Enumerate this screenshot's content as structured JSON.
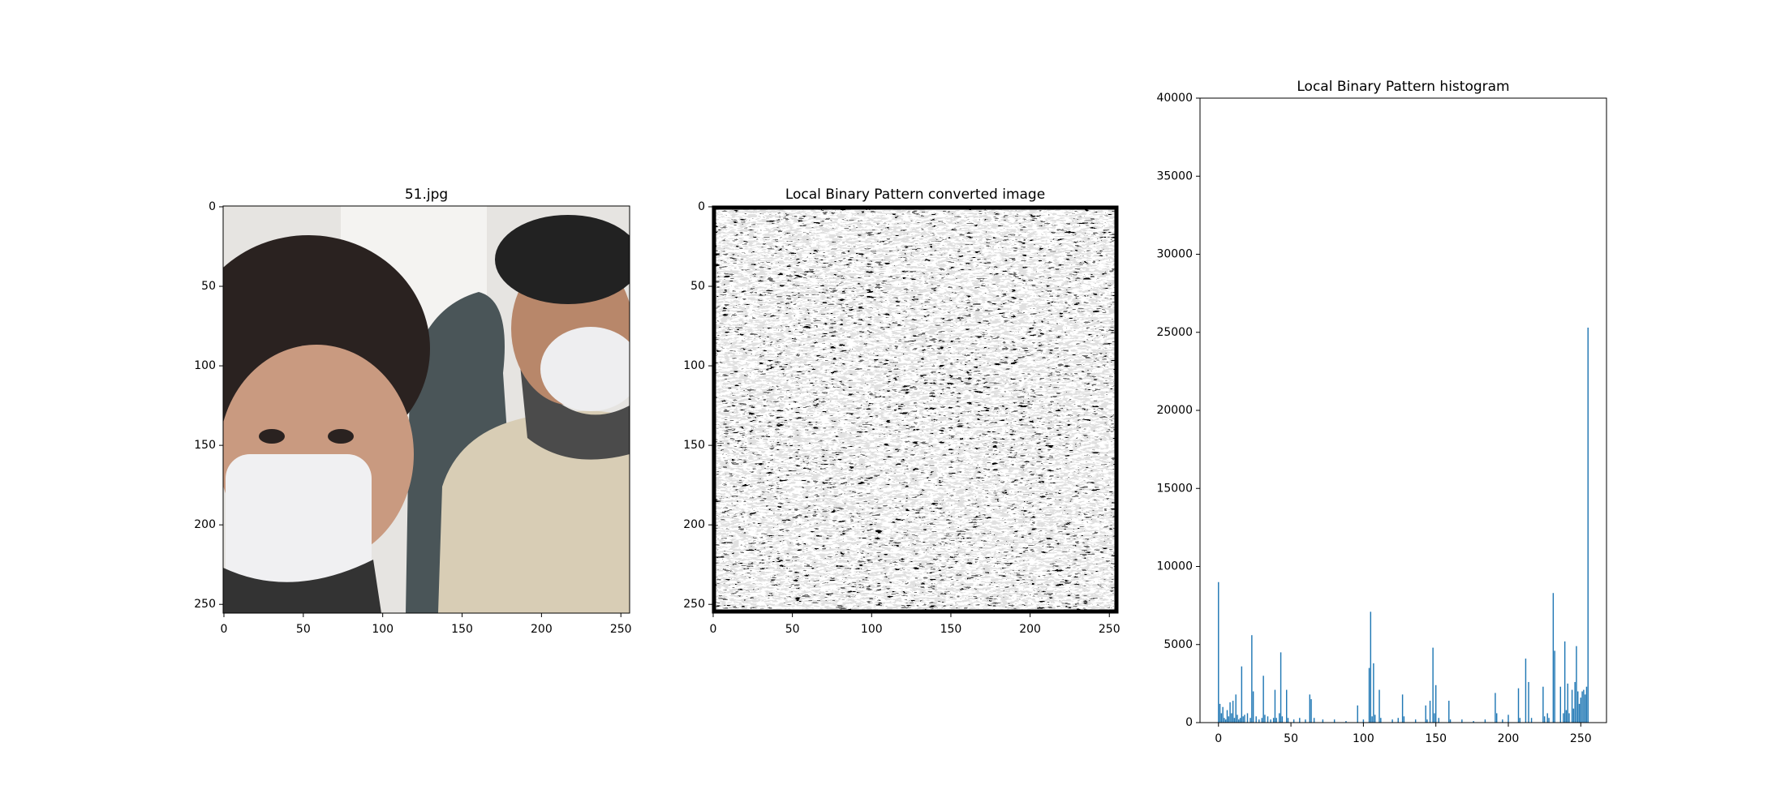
{
  "chart_data": [
    {
      "type": "image",
      "title": "51.jpg",
      "xlim": [
        -0.5,
        255.5
      ],
      "ylim": [
        255.5,
        -0.5
      ],
      "xticks": [
        0,
        50,
        100,
        150,
        200,
        250
      ],
      "yticks": [
        0,
        50,
        100,
        150,
        200,
        250
      ]
    },
    {
      "type": "image",
      "title": "Local Binary Pattern converted image",
      "xlim": [
        -0.5,
        255.5
      ],
      "ylim": [
        255.5,
        -0.5
      ],
      "xticks": [
        0,
        50,
        100,
        150,
        200,
        250
      ],
      "yticks": [
        0,
        50,
        100,
        150,
        200,
        250
      ]
    },
    {
      "type": "bar",
      "title": "Local Binary Pattern histogram",
      "color": "#1f77b4",
      "x": [
        0,
        1,
        2,
        3,
        4,
        5,
        6,
        7,
        8,
        9,
        10,
        11,
        12,
        13,
        14,
        15,
        16,
        17,
        18,
        20,
        22,
        23,
        24,
        26,
        28,
        30,
        31,
        32,
        34,
        36,
        38,
        39,
        40,
        42,
        43,
        44,
        47,
        48,
        52,
        56,
        60,
        63,
        64,
        66,
        72,
        80,
        88,
        96,
        100,
        104,
        105,
        106,
        107,
        108,
        111,
        112,
        120,
        124,
        127,
        128,
        136,
        143,
        144,
        146,
        148,
        149,
        150,
        152,
        159,
        160,
        168,
        176,
        184,
        191,
        192,
        196,
        200,
        207,
        208,
        212,
        214,
        216,
        224,
        225,
        227,
        228,
        231,
        232,
        236,
        238,
        239,
        240,
        241,
        242,
        244,
        245,
        246,
        247,
        248,
        249,
        250,
        251,
        252,
        253,
        254,
        255
      ],
      "values": [
        9000,
        1200,
        600,
        1000,
        300,
        200,
        800,
        400,
        1300,
        600,
        1400,
        300,
        1800,
        500,
        200,
        300,
        3600,
        400,
        500,
        600,
        300,
        5600,
        2000,
        400,
        200,
        300,
        3000,
        500,
        400,
        200,
        300,
        2100,
        300,
        600,
        4500,
        400,
        2100,
        300,
        200,
        300,
        200,
        1800,
        1500,
        300,
        200,
        200,
        100,
        1100,
        200,
        3500,
        7100,
        400,
        3800,
        500,
        2100,
        300,
        200,
        300,
        1800,
        400,
        200,
        1100,
        200,
        1400,
        4800,
        600,
        2400,
        300,
        1400,
        200,
        200,
        100,
        200,
        1900,
        600,
        200,
        500,
        2200,
        300,
        4100,
        2600,
        300,
        2300,
        400,
        600,
        300,
        8300,
        4600,
        2300,
        600,
        5200,
        800,
        2500,
        600,
        2100,
        900,
        2600,
        4900,
        2000,
        1200,
        1600,
        2000,
        2100,
        1800,
        2300,
        25300
      ],
      "xlim": [
        -12.75,
        267.75
      ],
      "ylim": [
        0,
        40000
      ],
      "xticks": [
        0,
        50,
        100,
        150,
        200,
        250
      ],
      "yticks": [
        0,
        5000,
        10000,
        15000,
        20000,
        25000,
        30000,
        35000,
        40000
      ]
    }
  ]
}
